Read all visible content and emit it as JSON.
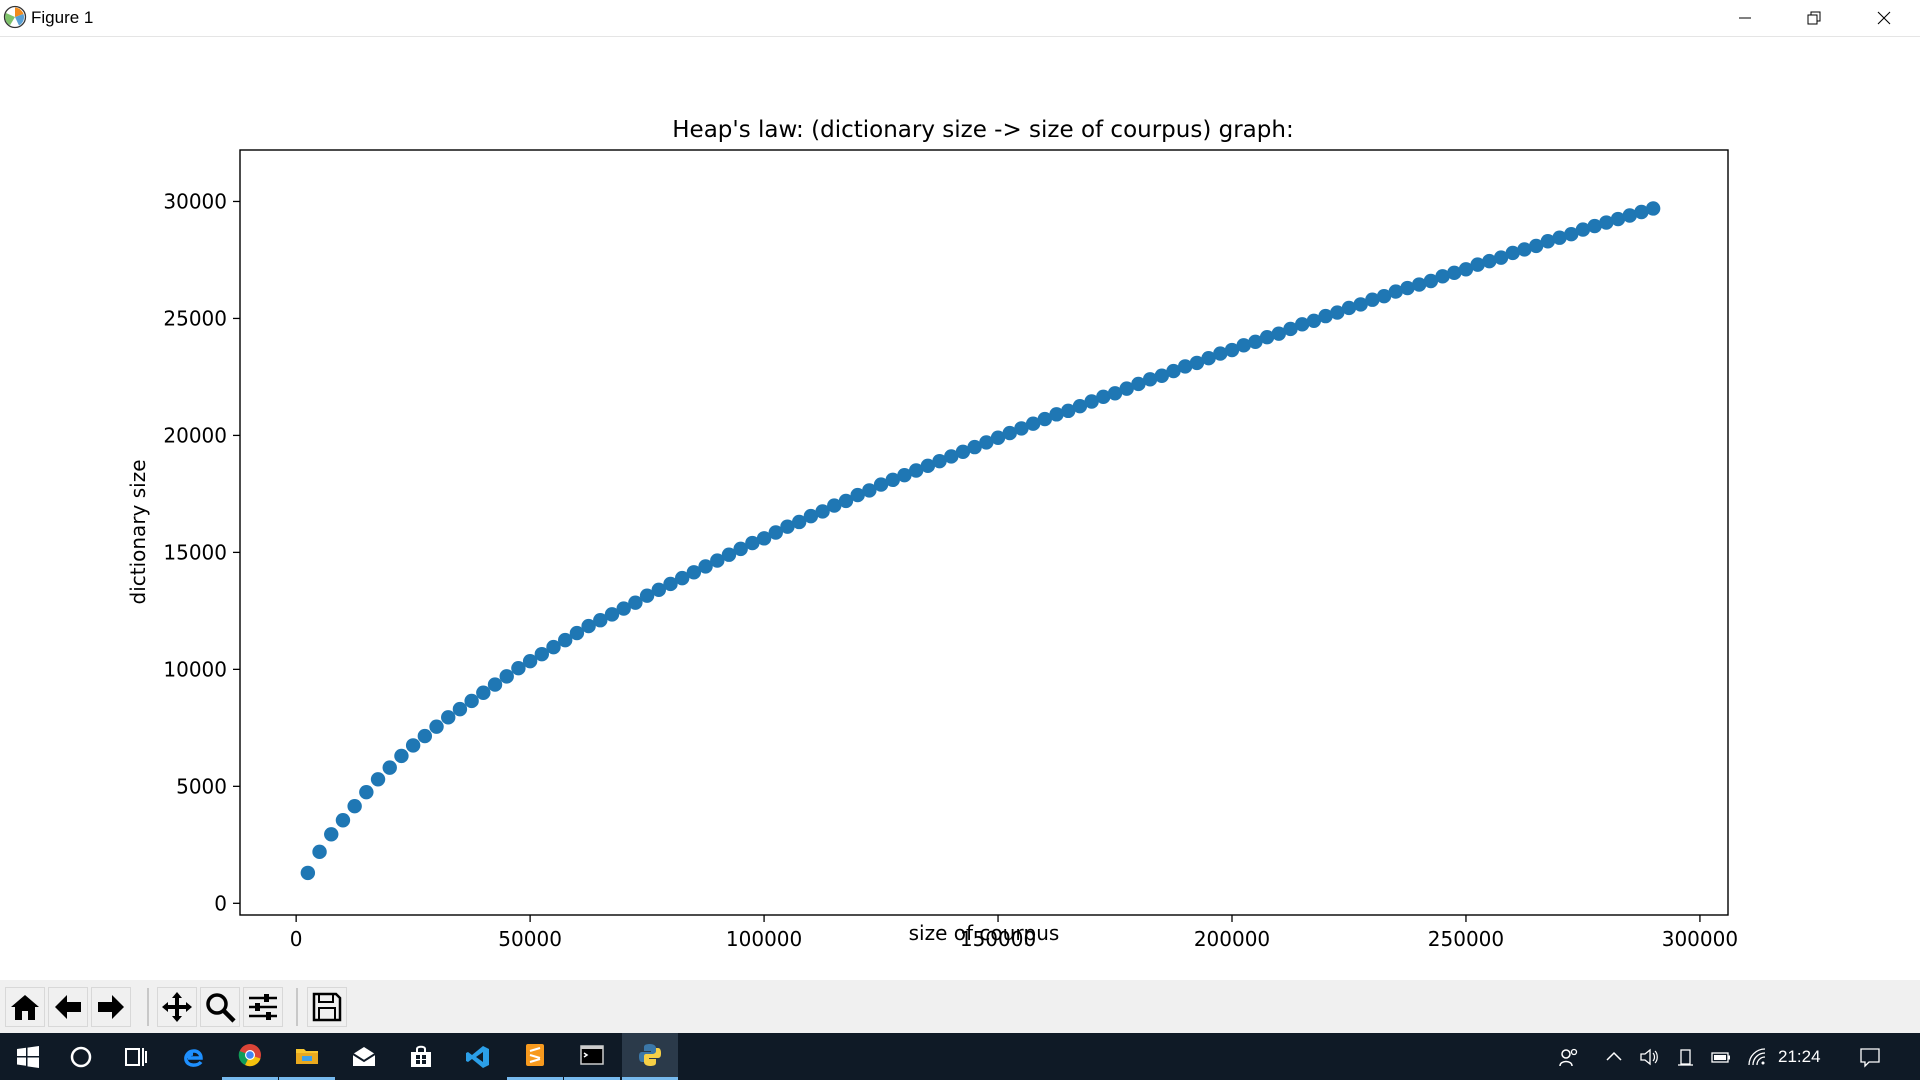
{
  "window": {
    "title": "Figure 1",
    "icons": [
      "matplotlib-icon",
      "minimize-icon",
      "restore-icon",
      "close-icon"
    ]
  },
  "chart_data": {
    "type": "scatter",
    "title": "Heap's law: (dictionary size -> size of courpus) graph:",
    "xlabel": "size of courpus",
    "ylabel": "dictionary size",
    "xlim": [
      -12000,
      306000
    ],
    "ylim": [
      -500,
      32200
    ],
    "xticks": [
      0,
      50000,
      100000,
      150000,
      200000,
      250000,
      300000
    ],
    "xtick_labels": [
      "0",
      "50000",
      "100000",
      "150000",
      "200000",
      "250000",
      "300000"
    ],
    "yticks": [
      0,
      5000,
      10000,
      15000,
      20000,
      25000,
      30000
    ],
    "ytick_labels": [
      "0",
      "5000",
      "10000",
      "15000",
      "20000",
      "25000",
      "30000"
    ],
    "grid": false,
    "marker_color": "#1f77b4",
    "series": [
      {
        "x": [
          2500,
          5000,
          7500,
          10000,
          12500,
          15000,
          17500,
          20000,
          22500,
          25000,
          27500,
          30000,
          32500,
          35000,
          37500,
          40000,
          42500,
          45000,
          47500,
          50000,
          52500,
          55000,
          57500,
          60000,
          62500,
          65000,
          67500,
          70000,
          72500,
          75000,
          77500,
          80000,
          82500,
          85000,
          87500,
          90000,
          92500,
          95000,
          97500,
          100000,
          102500,
          105000,
          107500,
          110000,
          112500,
          115000,
          117500,
          120000,
          122500,
          125000,
          127500,
          130000,
          132500,
          135000,
          137500,
          140000,
          142500,
          145000,
          147500,
          150000,
          152500,
          155000,
          157500,
          160000,
          162500,
          165000,
          167500,
          170000,
          172500,
          175000,
          177500,
          180000,
          182500,
          185000,
          187500,
          190000,
          192500,
          195000,
          197500,
          200000,
          202500,
          205000,
          207500,
          210000,
          212500,
          215000,
          217500,
          220000,
          222500,
          225000,
          227500,
          230000,
          232500,
          235000,
          237500,
          240000,
          242500,
          245000,
          247500,
          250000,
          252500,
          255000,
          257500,
          260000,
          262500,
          265000,
          267500,
          270000,
          272500,
          275000,
          277500,
          280000,
          282500,
          285000,
          287500,
          290000
        ],
        "y": [
          1300,
          2200,
          2950,
          3550,
          4150,
          4750,
          5300,
          5800,
          6300,
          6750,
          7150,
          7550,
          7950,
          8300,
          8650,
          9000,
          9350,
          9700,
          10050,
          10350,
          10650,
          10950,
          11250,
          11550,
          11850,
          12100,
          12350,
          12600,
          12850,
          13150,
          13400,
          13650,
          13900,
          14150,
          14400,
          14650,
          14900,
          15150,
          15400,
          15600,
          15850,
          16100,
          16300,
          16550,
          16750,
          17000,
          17200,
          17450,
          17650,
          17900,
          18100,
          18300,
          18500,
          18700,
          18900,
          19100,
          19300,
          19500,
          19700,
          19900,
          20100,
          20300,
          20500,
          20700,
          20900,
          21050,
          21250,
          21450,
          21650,
          21800,
          22000,
          22200,
          22400,
          22550,
          22750,
          22950,
          23100,
          23300,
          23500,
          23650,
          23850,
          24000,
          24200,
          24350,
          24550,
          24750,
          24900,
          25100,
          25250,
          25450,
          25600,
          25800,
          25950,
          26150,
          26300,
          26450,
          26600,
          26800,
          26950,
          27100,
          27300,
          27450,
          27600,
          27800,
          27950,
          28100,
          28300,
          28450,
          28600,
          28800,
          28950,
          29100,
          29250,
          29400,
          29550,
          29700
        ]
      }
    ]
  },
  "toolbar": {
    "buttons": [
      "home-icon",
      "back-icon",
      "forward-icon",
      "pan-icon",
      "zoom-icon",
      "configure-subplots-icon",
      "save-icon"
    ]
  },
  "taskbar": {
    "apps": [
      "windows-start-icon",
      "cortana-icon",
      "task-view-icon",
      "edge-icon",
      "chrome-icon",
      "file-explorer-icon",
      "mail-icon",
      "store-icon",
      "vscode-icon",
      "sublime-icon",
      "terminal-icon",
      "python-icon"
    ],
    "tray": [
      "people-icon",
      "chevron-up-icon",
      "volume-icon",
      "usb-icon",
      "battery-icon",
      "wifi-icon",
      "notification-icon"
    ],
    "clock": "21:24"
  },
  "colors": {
    "accent": "#1f77b4",
    "taskbar": "#0f1a26",
    "toolbar": "#f0f0f0"
  }
}
